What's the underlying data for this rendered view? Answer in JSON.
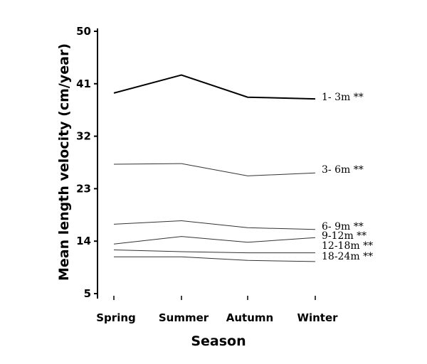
{
  "chart_data": {
    "type": "line",
    "title": "",
    "xlabel": "Season",
    "ylabel": "Mean length velocity (cm/year)",
    "categories": [
      "Spring",
      "Summer",
      "Autumn",
      "Winter"
    ],
    "ylim": [
      5,
      50
    ],
    "yticks": [
      5,
      14,
      23,
      32,
      41,
      50
    ],
    "grid": false,
    "legend": "none",
    "series": [
      {
        "name": "1-  3m **",
        "values": [
          39.4,
          42.5,
          38.7,
          38.4
        ],
        "color": "#000000",
        "stroke": "bold"
      },
      {
        "name": "3-  6m **",
        "values": [
          27.2,
          27.3,
          25.2,
          25.7
        ],
        "color": "#333333",
        "stroke": "thin"
      },
      {
        "name": "6-  9m **",
        "values": [
          16.9,
          17.5,
          16.3,
          16.0
        ],
        "color": "#333333",
        "stroke": "thin"
      },
      {
        "name": "9-12m **",
        "values": [
          13.5,
          14.8,
          13.8,
          14.6
        ],
        "color": "#333333",
        "stroke": "thin"
      },
      {
        "name": "12-18m **",
        "values": [
          12.5,
          12.2,
          12.0,
          12.0
        ],
        "color": "#333333",
        "stroke": "thin"
      },
      {
        "name": "18-24m **",
        "values": [
          11.3,
          11.3,
          10.7,
          10.5
        ],
        "color": "#333333",
        "stroke": "thin"
      }
    ]
  }
}
